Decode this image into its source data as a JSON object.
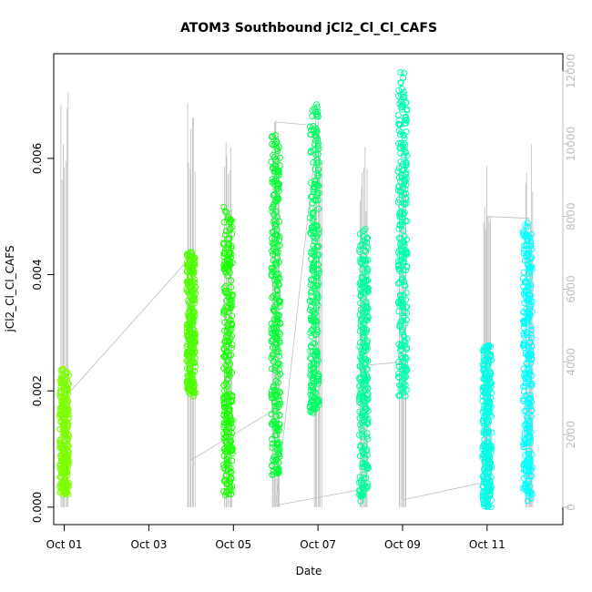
{
  "chart_data": {
    "type": "scatter",
    "title": "ATOM3 Southbound jCl2_Cl_Cl_CAFS",
    "xlabel": "Date",
    "ylabel": "jCl2_Cl_Cl_CAFS",
    "x_axis": {
      "type": "date",
      "range": [
        "2016-09-30T18:00",
        "2016-10-12T19:00"
      ],
      "ticks": [
        {
          "value": "2016-10-01",
          "label": "Oct 01"
        },
        {
          "value": "2016-10-03",
          "label": "Oct 03"
        },
        {
          "value": "2016-10-05",
          "label": "Oct 05"
        },
        {
          "value": "2016-10-07",
          "label": "Oct 07"
        },
        {
          "value": "2016-10-09",
          "label": "Oct 09"
        },
        {
          "value": "2016-10-11",
          "label": "Oct 11"
        }
      ]
    },
    "y_axis_left": {
      "range": [
        -0.0003,
        0.0078
      ],
      "ticks": [
        {
          "value": 0.0,
          "label": "0.000"
        },
        {
          "value": 0.002,
          "label": "0.002"
        },
        {
          "value": 0.004,
          "label": "0.004"
        },
        {
          "value": 0.006,
          "label": "0.006"
        }
      ]
    },
    "y_axis_right": {
      "range": [
        -480,
        12480
      ],
      "color": "#bebebe",
      "ticks": [
        {
          "value": 0,
          "label": "0"
        },
        {
          "value": 2000,
          "label": "2000"
        },
        {
          "value": 4000,
          "label": "4000"
        },
        {
          "value": 6000,
          "label": "6000"
        },
        {
          "value": 8000,
          "label": "8000"
        },
        {
          "value": 10000,
          "label": "10000"
        },
        {
          "value": 12000,
          "label": "12000"
        }
      ]
    },
    "grid": false,
    "legend": "none",
    "marker": "open-circle",
    "series": [
      {
        "x": "2016-10-01T00:00",
        "color": "#7FFF00",
        "ymin": 0.0002,
        "ymax": 0.0024
      },
      {
        "x": "2016-10-04T00:00",
        "color": "#4CFF00",
        "ymin": 0.0019,
        "ymax": 0.0044
      },
      {
        "x": "2016-10-04T21:00",
        "color": "#19FF00",
        "ymin": 0.0002,
        "ymax": 0.0052
      },
      {
        "x": "2016-10-06T00:00",
        "color": "#00FF33",
        "ymin": 0.0005,
        "ymax": 0.0064
      },
      {
        "x": "2016-10-06T22:00",
        "color": "#00FF66",
        "ymin": 0.0016,
        "ymax": 0.007
      },
      {
        "x": "2016-10-08T02:00",
        "color": "#00FF99",
        "ymin": 0.0001,
        "ymax": 0.0048
      },
      {
        "x": "2016-10-09T00:00",
        "color": "#00FFB2",
        "ymin": 0.0019,
        "ymax": 0.0075
      },
      {
        "x": "2016-10-11T00:00",
        "color": "#00FFE5",
        "ymin": 0.0,
        "ymax": 0.0028
      },
      {
        "x": "2016-10-11T23:00",
        "color": "#00FFFF",
        "ymin": 0.0001,
        "ymax": 0.0049
      }
    ],
    "secondary_series": {
      "name": "",
      "color": "#bebebe",
      "type": "line",
      "spikes": [
        {
          "x": "2016-10-01T00:00",
          "peak": 12000
        },
        {
          "x": "2016-10-04T00:00",
          "peak": 11800
        },
        {
          "x": "2016-10-04T21:00",
          "peak": 10500
        },
        {
          "x": "2016-10-06T00:00",
          "peak": 10900
        },
        {
          "x": "2016-10-07T00:00",
          "peak": 10800
        },
        {
          "x": "2016-10-08T02:00",
          "peak": 10700
        },
        {
          "x": "2016-10-09T00:00",
          "peak": 11200
        },
        {
          "x": "2016-10-11T00:00",
          "peak": 10000
        },
        {
          "x": "2016-10-12T00:00",
          "peak": 10000
        }
      ],
      "connectors": [
        {
          "x": "2016-10-01T00:00",
          "y": 3000
        },
        {
          "x": "2016-10-04T00:00",
          "y": 6900
        },
        {
          "x": "2016-10-04T00:00",
          "y": 1300
        },
        {
          "x": "2016-10-06T00:00",
          "y": 2700
        },
        {
          "x": "2016-10-06T00:00",
          "y": 10600
        },
        {
          "x": "2016-10-07T00:00",
          "y": 10500
        },
        {
          "x": "2016-10-06T00:00",
          "y": 50
        },
        {
          "x": "2016-10-08T02:00",
          "y": 500
        },
        {
          "x": "2016-10-08T02:00",
          "y": 3900
        },
        {
          "x": "2016-10-09T00:00",
          "y": 4000
        },
        {
          "x": "2016-10-09T00:00",
          "y": 200
        },
        {
          "x": "2016-10-11T00:00",
          "y": 700
        },
        {
          "x": "2016-10-11T00:00",
          "y": 8000
        },
        {
          "x": "2016-10-12T00:00",
          "y": 7950
        }
      ]
    }
  }
}
